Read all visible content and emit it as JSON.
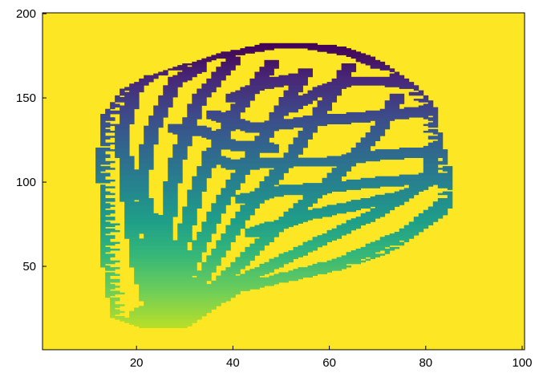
{
  "chart_data": {
    "type": "heatmap",
    "title": "",
    "xlabel": "",
    "ylabel": "",
    "xlim": [
      0.5,
      100.5
    ],
    "ylim": [
      0.5,
      200.5
    ],
    "x_ticks": [
      20,
      40,
      60,
      80,
      100
    ],
    "y_ticks": [
      50,
      100,
      150,
      200
    ],
    "grid": false,
    "legend": "none",
    "colormap": "viridis",
    "background_value": 1.0,
    "background_color": "#fde725",
    "description_of_values": "Cells outside the vein network hold the maximum value; cells on the network are colored by height, darkest at the top of the shape and lightest near the base at about x 27, y 15.",
    "outline": [
      [
        14,
        32
      ],
      [
        13,
        50
      ],
      [
        13,
        75
      ],
      [
        12,
        100
      ],
      [
        12,
        120
      ],
      [
        13,
        140
      ],
      [
        17,
        155
      ],
      [
        22,
        163
      ],
      [
        30,
        170
      ],
      [
        38,
        177
      ],
      [
        46,
        182
      ],
      [
        53,
        183
      ],
      [
        62,
        181
      ],
      [
        68,
        176
      ],
      [
        73,
        168
      ],
      [
        78,
        158
      ],
      [
        82,
        145
      ],
      [
        83,
        130
      ],
      [
        84,
        120
      ],
      [
        85,
        110
      ],
      [
        86,
        100
      ],
      [
        86,
        88
      ],
      [
        84,
        80
      ],
      [
        80,
        72
      ],
      [
        75,
        62
      ],
      [
        70,
        55
      ],
      [
        65,
        50
      ],
      [
        58,
        45
      ],
      [
        50,
        40
      ],
      [
        42,
        35
      ],
      [
        38,
        28
      ],
      [
        34,
        20
      ],
      [
        31,
        14
      ],
      [
        22,
        13
      ],
      [
        15,
        20
      ]
    ],
    "veins": [
      [
        [
          24,
          15
        ],
        [
          20,
          55
        ],
        [
          18,
          100
        ],
        [
          17,
          130
        ],
        [
          20,
          158
        ],
        [
          26,
          169
        ],
        [
          38,
          177
        ],
        [
          48,
          182
        ],
        [
          56,
          182
        ],
        [
          64,
          178
        ],
        [
          70,
          170
        ]
      ],
      [
        [
          25,
          18
        ],
        [
          23,
          60
        ],
        [
          21,
          100
        ],
        [
          23,
          130
        ],
        [
          28,
          160
        ],
        [
          33,
          168
        ]
      ],
      [
        [
          26,
          20
        ],
        [
          26,
          70
        ],
        [
          28,
          110
        ],
        [
          33,
          150
        ],
        [
          40,
          172
        ]
      ],
      [
        [
          27,
          20
        ],
        [
          29,
          60
        ],
        [
          33,
          100
        ],
        [
          40,
          140
        ],
        [
          48,
          170
        ]
      ],
      [
        [
          28,
          20
        ],
        [
          31,
          50
        ],
        [
          37,
          85
        ],
        [
          46,
          125
        ],
        [
          55,
          165
        ]
      ],
      [
        [
          29,
          20
        ],
        [
          34,
          45
        ],
        [
          42,
          80
        ],
        [
          52,
          115
        ],
        [
          60,
          150
        ],
        [
          64,
          168
        ]
      ],
      [
        [
          30,
          22
        ],
        [
          38,
          42
        ],
        [
          48,
          70
        ],
        [
          60,
          100
        ],
        [
          70,
          130
        ],
        [
          74,
          150
        ]
      ],
      [
        [
          31,
          24
        ],
        [
          42,
          42
        ],
        [
          56,
          62
        ],
        [
          70,
          82
        ],
        [
          80,
          100
        ],
        [
          82,
          120
        ]
      ],
      [
        [
          32,
          26
        ],
        [
          46,
          40
        ],
        [
          62,
          52
        ],
        [
          76,
          70
        ],
        [
          84,
          88
        ]
      ],
      [
        [
          33,
          28
        ],
        [
          50,
          38
        ],
        [
          66,
          44
        ],
        [
          76,
          52
        ]
      ],
      [
        [
          34,
          30
        ],
        [
          52,
          36
        ],
        [
          64,
          38
        ]
      ],
      [
        [
          30,
          22
        ],
        [
          36,
          28
        ],
        [
          40,
          34
        ]
      ],
      [
        [
          33,
          31
        ],
        [
          38,
          34
        ],
        [
          44,
          36
        ],
        [
          52,
          40
        ]
      ],
      [
        [
          35,
          116
        ],
        [
          40,
          110
        ],
        [
          50,
          112
        ],
        [
          60,
          112
        ],
        [
          70,
          116
        ],
        [
          80,
          118
        ],
        [
          84,
          120
        ]
      ],
      [
        [
          36,
          140
        ],
        [
          44,
          132
        ],
        [
          55,
          136
        ],
        [
          64,
          138
        ],
        [
          72,
          140
        ],
        [
          80,
          142
        ]
      ],
      [
        [
          28,
          132
        ],
        [
          34,
          130
        ],
        [
          40,
          122
        ],
        [
          48,
          120
        ]
      ],
      [
        [
          42,
          90
        ],
        [
          50,
          95
        ],
        [
          60,
          97
        ],
        [
          70,
          100
        ],
        [
          80,
          102
        ],
        [
          86,
          100
        ]
      ],
      [
        [
          52,
          144
        ],
        [
          58,
          154
        ],
        [
          64,
          160
        ],
        [
          72,
          160
        ],
        [
          78,
          158
        ]
      ],
      [
        [
          40,
          150
        ],
        [
          46,
          158
        ],
        [
          54,
          162
        ]
      ],
      [
        [
          44,
          70
        ],
        [
          55,
          80
        ],
        [
          65,
          86
        ],
        [
          75,
          92
        ]
      ],
      [
        [
          26,
          52
        ],
        [
          24,
          70
        ],
        [
          22,
          85
        ]
      ]
    ]
  }
}
